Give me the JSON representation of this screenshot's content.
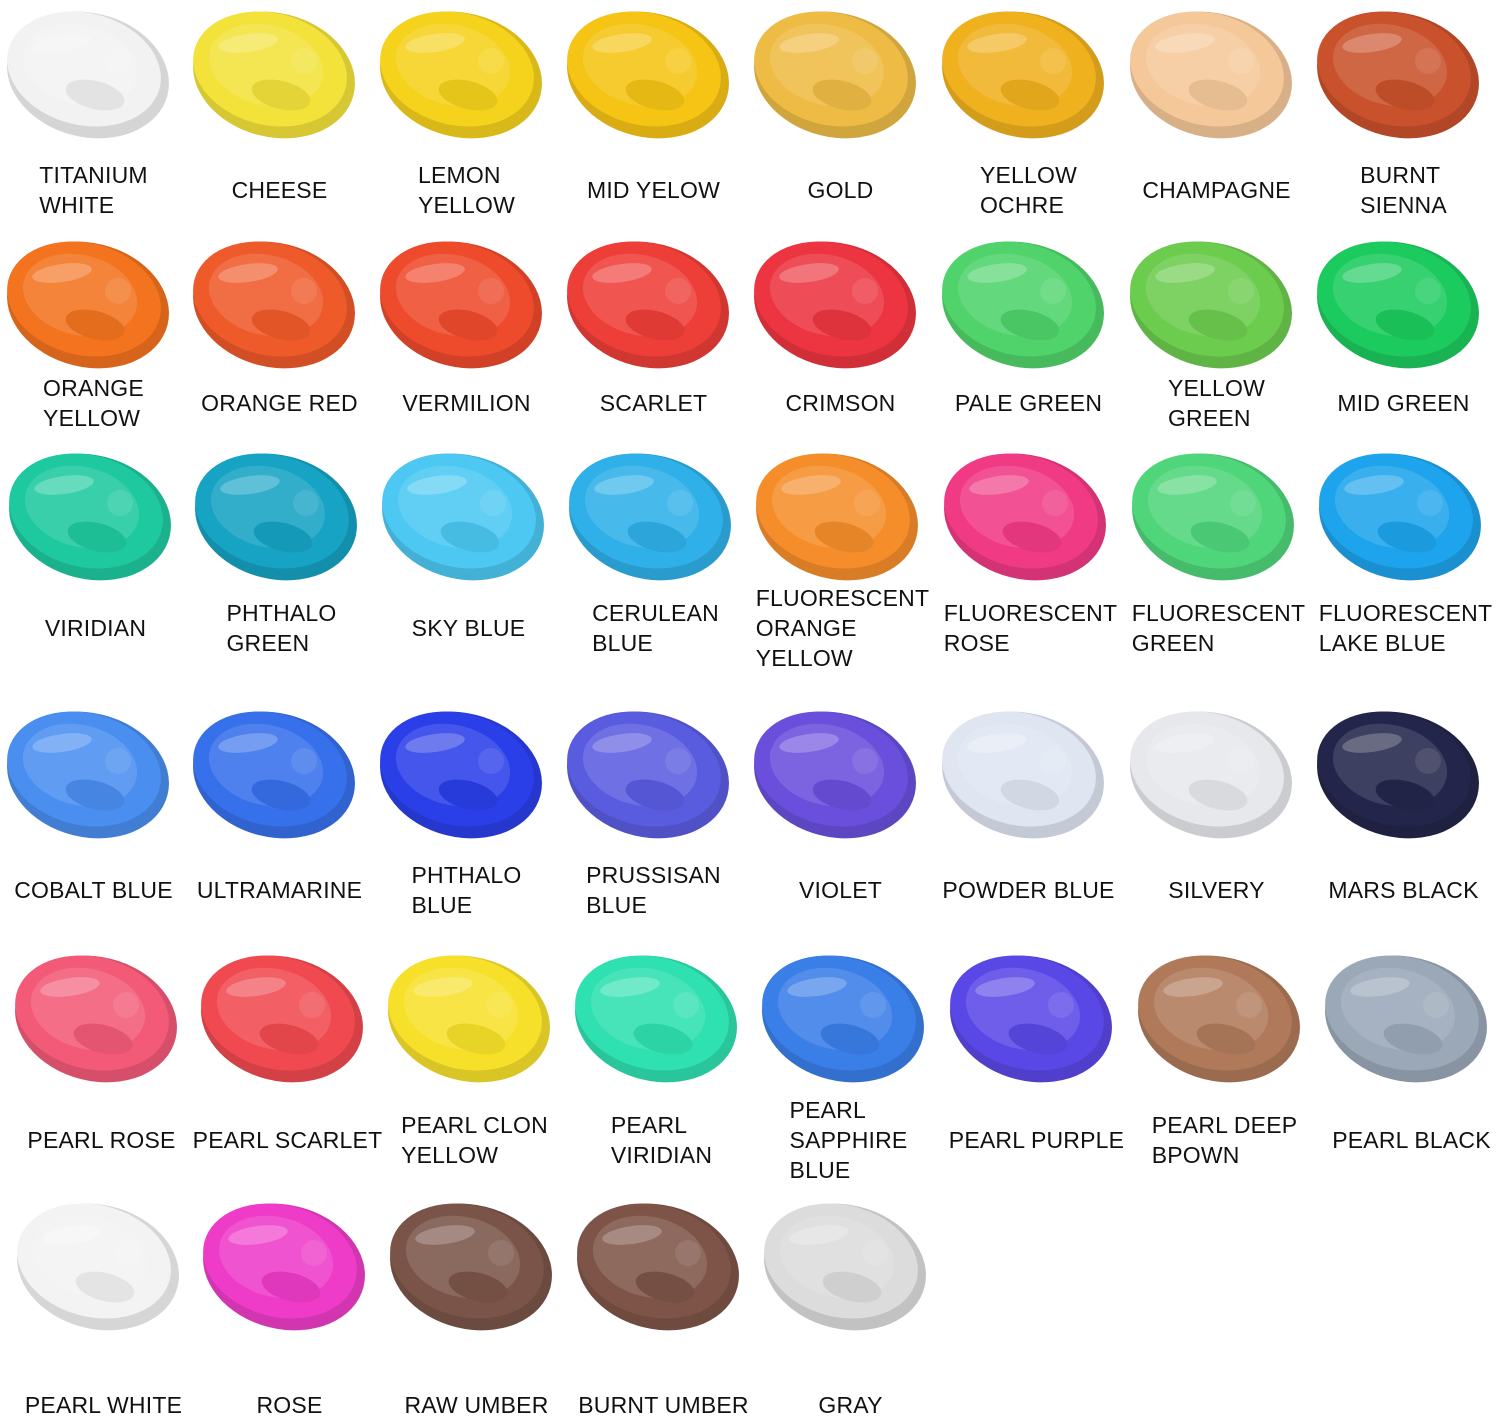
{
  "rows": [
    [
      {
        "lines": [
          "TITANIUM",
          "WHITE"
        ],
        "color": "#f2f2f2"
      },
      {
        "lines": [
          "CHEESE"
        ],
        "color": "#f3e23a"
      },
      {
        "lines": [
          "LEMON",
          "YELLOW"
        ],
        "color": "#f5d21c"
      },
      {
        "lines": [
          "MID YELOW"
        ],
        "color": "#f5c414"
      },
      {
        "lines": [
          "GOLD"
        ],
        "color": "#eebb45"
      },
      {
        "lines": [
          "YELLOW",
          "OCHRE"
        ],
        "color": "#f0b11f"
      },
      {
        "lines": [
          "CHAMPAGNE"
        ],
        "color": "#f5c89a"
      },
      {
        "lines": [
          "BURNT",
          "SIENNA"
        ],
        "color": "#c9512b"
      }
    ],
    [
      {
        "lines": [
          "ORANGE",
          "YELLOW"
        ],
        "color": "#f3731f"
      },
      {
        "lines": [
          "ORANGE RED"
        ],
        "color": "#ef5a2a"
      },
      {
        "lines": [
          "VERMILION"
        ],
        "color": "#ee4a2c"
      },
      {
        "lines": [
          "SCARLET"
        ],
        "color": "#ee3e38"
      },
      {
        "lines": [
          "CRIMSON"
        ],
        "color": "#ec3540"
      },
      {
        "lines": [
          "PALE GREEN"
        ],
        "color": "#4fd36a"
      },
      {
        "lines": [
          "YELLOW",
          "GREEN"
        ],
        "color": "#6ccc4e"
      },
      {
        "lines": [
          "MID GREEN"
        ],
        "color": "#1ccb5e"
      }
    ],
    [
      {
        "lines": [
          "VIRIDIAN"
        ],
        "color": "#1fc9a0"
      },
      {
        "lines": [
          "PHTHALO",
          "GREEN"
        ],
        "color": "#16a3c4"
      },
      {
        "lines": [
          "SKY BLUE"
        ],
        "color": "#4cc8f2"
      },
      {
        "lines": [
          "CERULEAN",
          "BLUE"
        ],
        "color": "#2fb0e8"
      },
      {
        "lines": [
          "FLUORESCENT",
          "ORANGE",
          "YELLOW"
        ],
        "color": "#f58e2a"
      },
      {
        "lines": [
          "FLUORESCENT",
          "ROSE"
        ],
        "color": "#f03a84"
      },
      {
        "lines": [
          "FLUORESCENT",
          "GREEN"
        ],
        "color": "#4fd57a"
      },
      {
        "lines": [
          "FLUORESCENT",
          "LAKE BLUE"
        ],
        "color": "#1ea4ec"
      }
    ],
    [
      {
        "lines": [
          "COBALT BLUE"
        ],
        "color": "#4a8ef0"
      },
      {
        "lines": [
          "ULTRAMARINE"
        ],
        "color": "#3670ea"
      },
      {
        "lines": [
          "PHTHALO",
          "BLUE"
        ],
        "color": "#2a3fe8"
      },
      {
        "lines": [
          "PRUSSISAN",
          "BLUE"
        ],
        "color": "#5a5ce0"
      },
      {
        "lines": [
          "VIOLET"
        ],
        "color": "#6a4fdc"
      },
      {
        "lines": [
          "POWDER BLUE"
        ],
        "color": "#dfe6f2"
      },
      {
        "lines": [
          "SILVERY"
        ],
        "color": "#e6e8ec"
      },
      {
        "lines": [
          "MARS BLACK"
        ],
        "color": "#23264a"
      }
    ],
    [
      {
        "lines": [
          "PEARL ROSE"
        ],
        "color": "#f25a78"
      },
      {
        "lines": [
          "PEARL SCARLET"
        ],
        "color": "#f04a50"
      },
      {
        "lines": [
          "PEARL CLON",
          "YELLOW"
        ],
        "color": "#f7e02a"
      },
      {
        "lines": [
          "PEARL",
          "VIRIDIAN"
        ],
        "color": "#2fe0b0"
      },
      {
        "lines": [
          "PEARL",
          "SAPPHIRE",
          "BLUE"
        ],
        "color": "#3a7ee8"
      },
      {
        "lines": [
          "PEARL PURPLE"
        ],
        "color": "#5a48e6"
      },
      {
        "lines": [
          "PEARL DEEP",
          "BPOWN"
        ],
        "color": "#b07a5a"
      },
      {
        "lines": [
          "PEARL BLACK"
        ],
        "color": "#9aa8b8"
      }
    ],
    [
      {
        "lines": [
          "PEARL WHITE"
        ],
        "color": "#f3f3f3"
      },
      {
        "lines": [
          "ROSE"
        ],
        "color": "#ee3cc8"
      },
      {
        "lines": [
          "RAW UMBER"
        ],
        "color": "#7a5448"
      },
      {
        "lines": [
          "BURNT UMBER"
        ],
        "color": "#7e5448"
      },
      {
        "lines": [
          "GRAY"
        ],
        "color": "#dcdcdc"
      }
    ]
  ]
}
